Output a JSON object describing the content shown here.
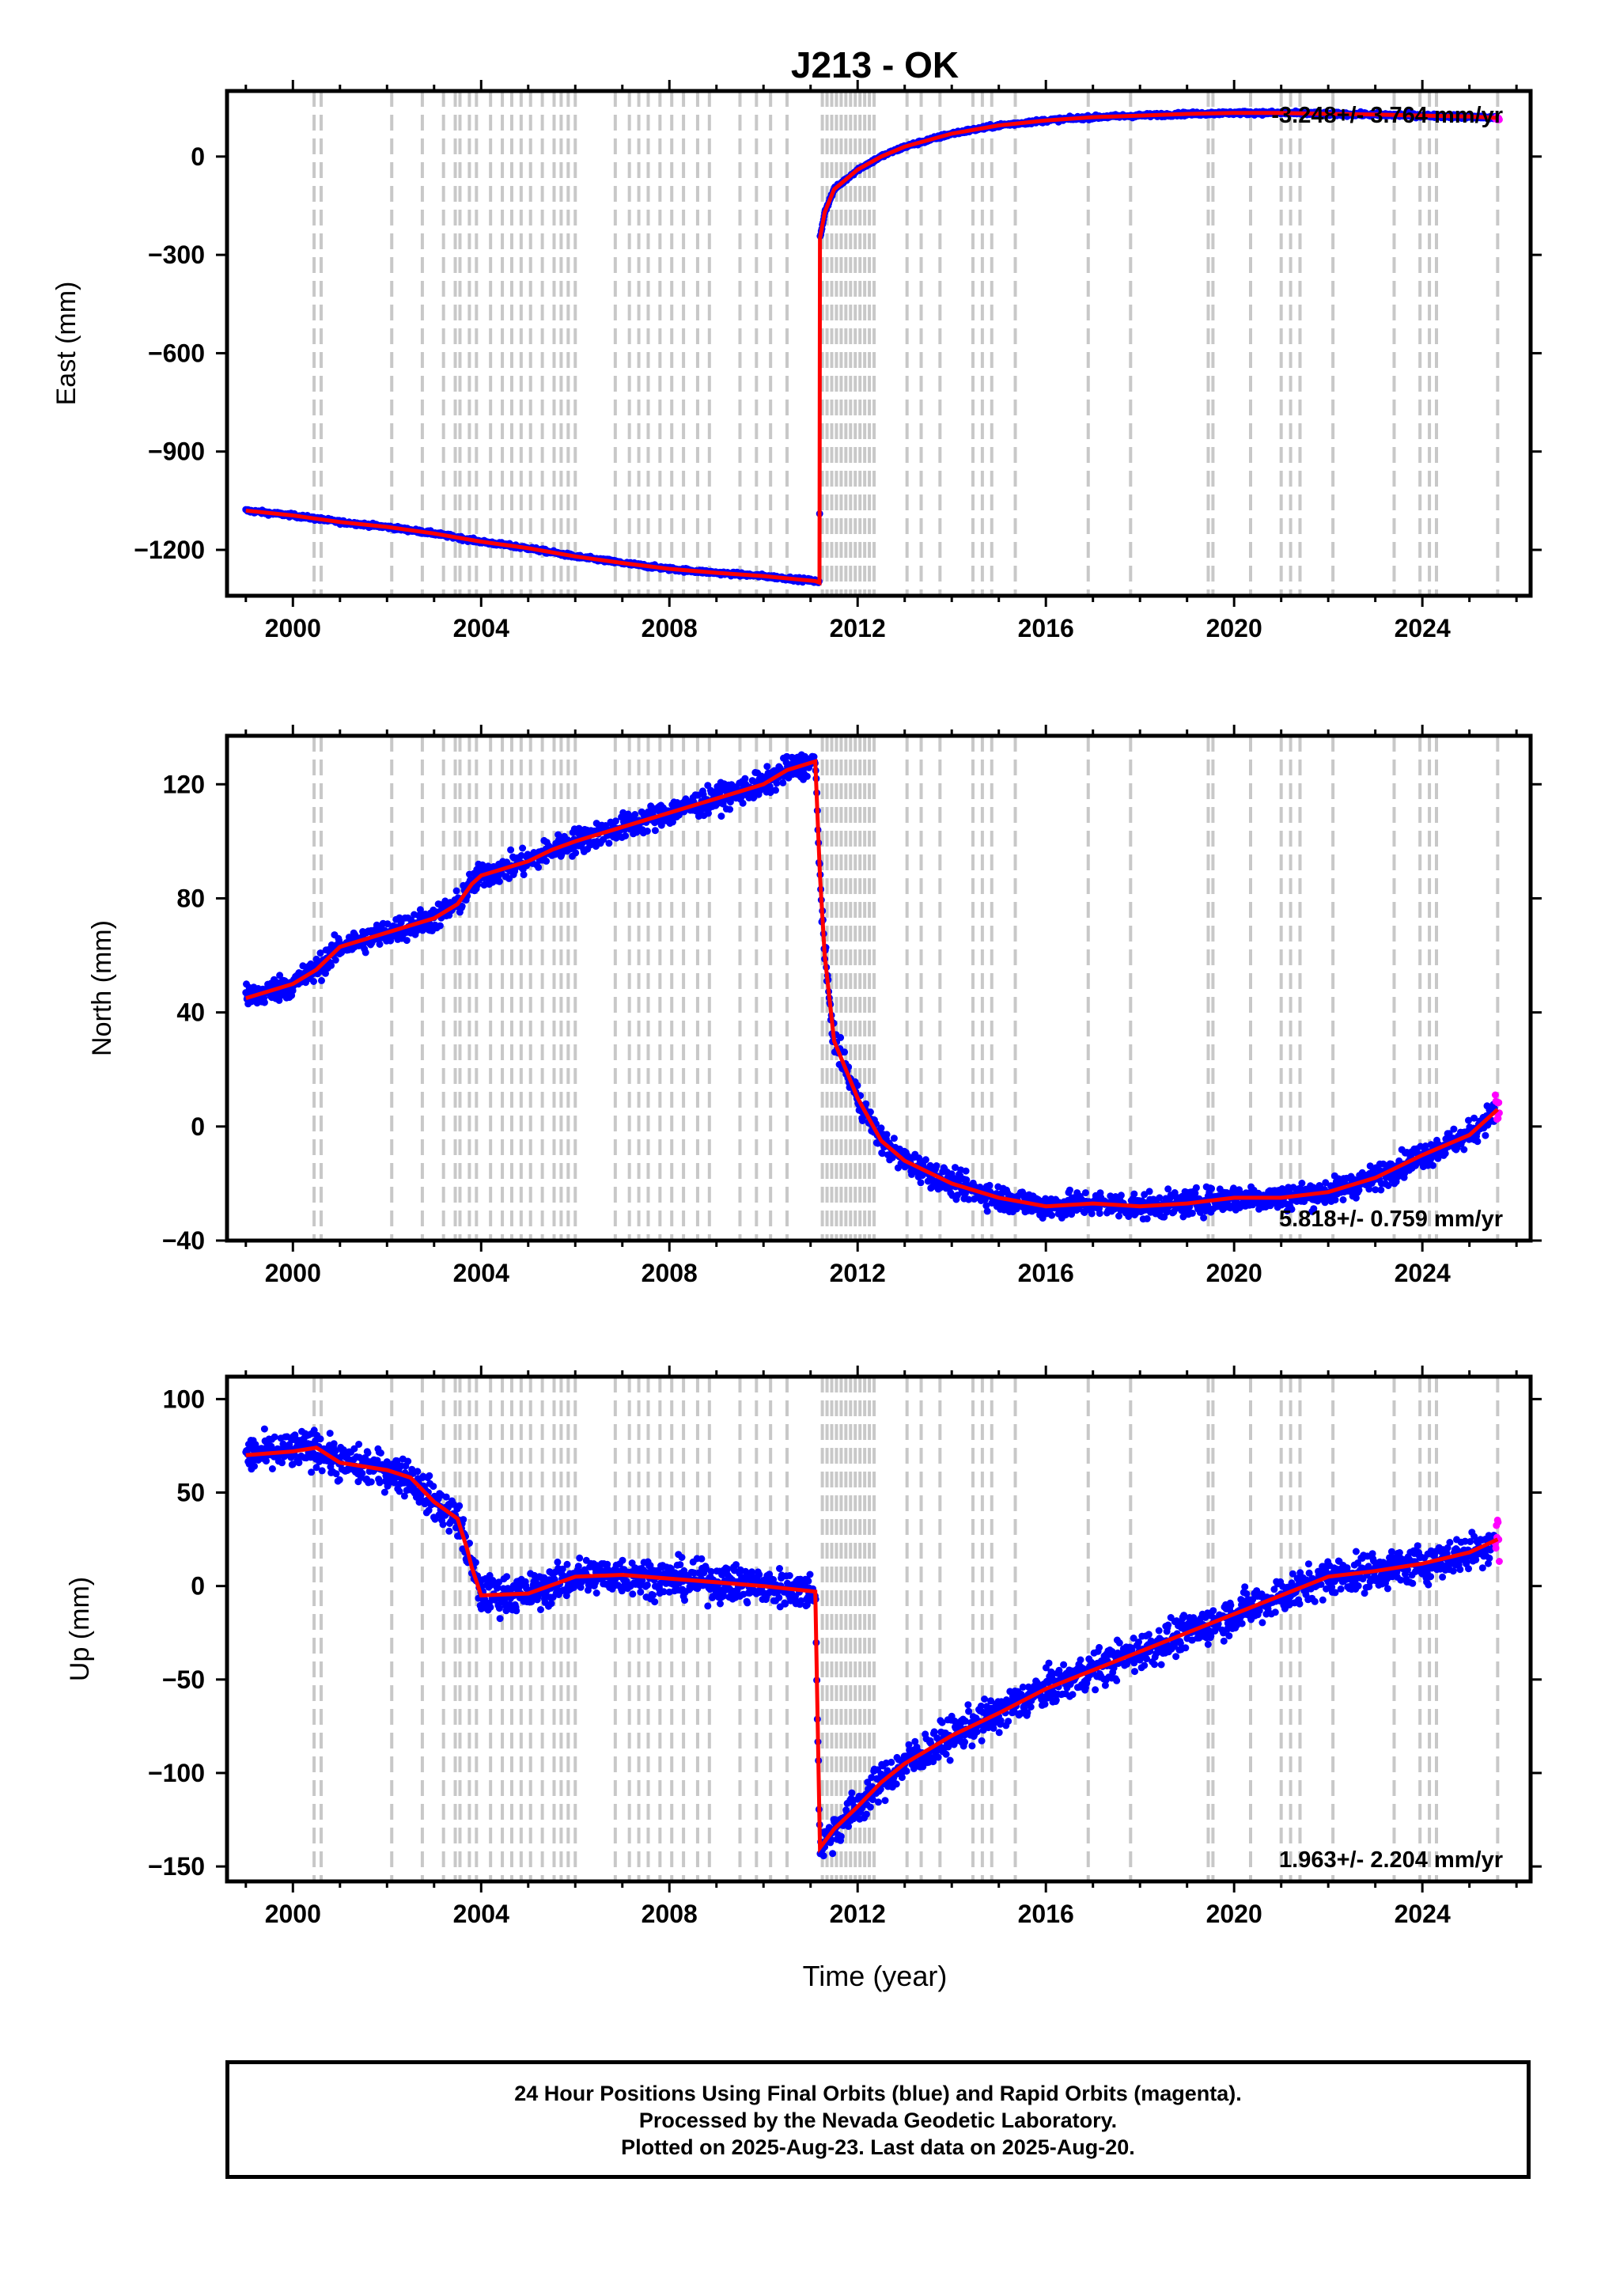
{
  "title": "J213 - OK",
  "xlabel": "Time (year)",
  "x_ticks": [
    "2000",
    "2004",
    "2008",
    "2012",
    "2016",
    "2020",
    "2024"
  ],
  "colors": {
    "final_orbits": "#0000ff",
    "rapid_orbits": "#ff00ff",
    "model": "#ff0000",
    "steps": "#c8c8c8"
  },
  "footer": {
    "line1": "24 Hour Positions Using Final Orbits (blue) and Rapid Orbits (magenta).",
    "line2": "Processed by the Nevada Geodetic Laboratory.",
    "line3": "Plotted on 2025-Aug-23. Last data on 2025-Aug-20."
  },
  "chart_data": [
    {
      "type": "scatter",
      "panel": "east",
      "ylabel": "East (mm)",
      "xlim": [
        1998.6,
        2026.3
      ],
      "ylim": [
        -1340,
        200
      ],
      "y_ticks": [
        "0",
        "−300",
        "−600",
        "−900",
        "−1200"
      ],
      "y_tick_values": [
        0,
        -300,
        -600,
        -900,
        -1200
      ],
      "rate_label": "-3.248+/- 3.764 mm/yr",
      "rate_label_position": "top-right",
      "series": [
        {
          "name": "model",
          "x": [
            1999.0,
            2000.0,
            2001.0,
            2002.0,
            2003.0,
            2004.0,
            2005.0,
            2006.0,
            2007.0,
            2008.0,
            2009.0,
            2010.0,
            2011.1,
            2011.19,
            2011.2,
            2011.3,
            2011.5,
            2012.0,
            2012.5,
            2013.0,
            2014.0,
            2015.0,
            2016.0,
            2017.0,
            2018.0,
            2019.0,
            2020.0,
            2021.0,
            2022.0,
            2023.0,
            2024.0,
            2025.0,
            2025.6
          ],
          "y": [
            -1080,
            -1095,
            -1115,
            -1130,
            -1150,
            -1175,
            -1195,
            -1220,
            -1240,
            -1258,
            -1270,
            -1280,
            -1295,
            -1300,
            -250,
            -170,
            -100,
            -40,
            0,
            30,
            70,
            95,
            110,
            120,
            125,
            130,
            133,
            133,
            130,
            128,
            125,
            122,
            118
          ]
        }
      ]
    },
    {
      "type": "scatter",
      "panel": "north",
      "ylabel": "North (mm)",
      "xlim": [
        1998.6,
        2026.3
      ],
      "ylim": [
        -40,
        137
      ],
      "y_ticks": [
        "120",
        "80",
        "40",
        "0",
        "−40"
      ],
      "y_tick_values": [
        120,
        80,
        40,
        0,
        -40
      ],
      "rate_label": "5.818+/- 0.759 mm/yr",
      "rate_label_position": "bottom-right",
      "series": [
        {
          "name": "model",
          "x": [
            1999.0,
            2000.0,
            2000.5,
            2001.0,
            2002.0,
            2003.0,
            2003.5,
            2003.8,
            2004.0,
            2005.0,
            2005.5,
            2006.0,
            2007.0,
            2008.0,
            2009.0,
            2010.0,
            2010.5,
            2011.1,
            2011.2,
            2011.3,
            2011.5,
            2012.0,
            2012.5,
            2013.0,
            2014.0,
            2015.0,
            2016.0,
            2017.0,
            2018.0,
            2019.0,
            2020.0,
            2021.0,
            2022.0,
            2023.0,
            2024.0,
            2025.0,
            2025.6
          ],
          "y": [
            45,
            50,
            55,
            63,
            68,
            73,
            78,
            85,
            88,
            93,
            97,
            100,
            105,
            110,
            115,
            120,
            125,
            128,
            88,
            60,
            30,
            10,
            -5,
            -12,
            -20,
            -25,
            -28,
            -27,
            -28,
            -27,
            -25,
            -25,
            -23,
            -18,
            -10,
            -3,
            6
          ]
        }
      ]
    },
    {
      "type": "scatter",
      "panel": "up",
      "ylabel": "Up (mm)",
      "xlim": [
        1998.6,
        2026.3
      ],
      "ylim": [
        -158,
        112
      ],
      "y_ticks": [
        "100",
        "50",
        "0",
        "−50",
        "−100",
        "−150"
      ],
      "y_tick_values": [
        100,
        50,
        0,
        -50,
        -100,
        -150
      ],
      "rate_label": "1.963+/- 2.204 mm/yr",
      "rate_label_position": "bottom-right",
      "series": [
        {
          "name": "model",
          "x": [
            1999.0,
            2000.0,
            2000.5,
            2001.0,
            2002.0,
            2002.5,
            2003.0,
            2003.5,
            2003.7,
            2003.8,
            2004.0,
            2005.0,
            2006.0,
            2007.0,
            2008.0,
            2009.0,
            2010.0,
            2011.1,
            2011.2,
            2011.5,
            2012.0,
            2012.5,
            2013.0,
            2014.0,
            2015.0,
            2016.0,
            2017.0,
            2018.0,
            2019.0,
            2020.0,
            2021.0,
            2022.0,
            2023.0,
            2024.0,
            2025.0,
            2025.6
          ],
          "y": [
            70,
            72,
            74,
            66,
            62,
            58,
            45,
            36,
            20,
            10,
            -5,
            -4,
            5,
            6,
            4,
            2,
            0,
            -3,
            -140,
            -130,
            -118,
            -105,
            -95,
            -80,
            -68,
            -55,
            -45,
            -35,
            -25,
            -15,
            -5,
            5,
            8,
            12,
            18,
            25
          ]
        }
      ]
    }
  ],
  "step_years": [
    2000.45,
    2000.6,
    2002.1,
    2002.75,
    2003.2,
    2003.45,
    2003.55,
    2003.75,
    2003.9,
    2004.2,
    2004.45,
    2004.65,
    2004.85,
    2005.05,
    2005.3,
    2005.55,
    2005.7,
    2005.85,
    2006.0,
    2006.85,
    2007.15,
    2007.35,
    2007.55,
    2007.8,
    2008.05,
    2008.3,
    2008.6,
    2008.85,
    2009.5,
    2009.85,
    2010.15,
    2010.5,
    2011.25,
    2011.35,
    2011.45,
    2011.55,
    2011.65,
    2011.75,
    2011.85,
    2011.95,
    2012.05,
    2012.15,
    2012.25,
    2012.35,
    2013.05,
    2013.35,
    2013.75,
    2014.45,
    2014.65,
    2014.85,
    2015.35,
    2016.9,
    2017.8,
    2019.45,
    2019.55,
    2020.35,
    2021.0,
    2021.2,
    2021.4,
    2022.1,
    2023.4,
    2023.95,
    2024.15,
    2024.3,
    2025.6
  ]
}
